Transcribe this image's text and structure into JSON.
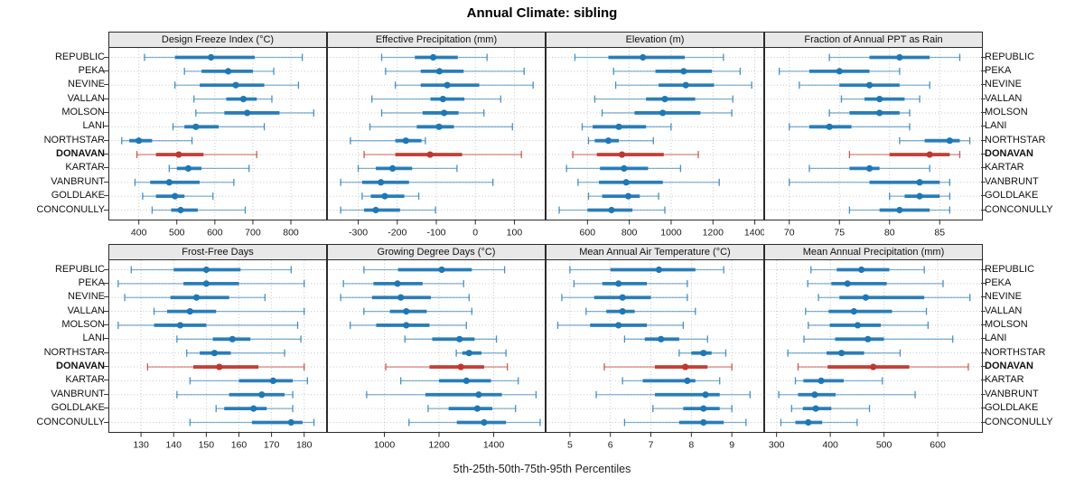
{
  "title": "Annual Climate: sibling",
  "caption": "5th-25th-50th-75th-95th Percentiles",
  "chart_data": {
    "type": "scatter",
    "subtype": "percentile-dotplot-trellis",
    "percentiles": [
      5,
      25,
      50,
      75,
      95
    ],
    "stations": [
      "REPUBLIC",
      "PEKA",
      "NEVINE",
      "VALLAN",
      "MOLSON",
      "LANI",
      "NORTHSTAR",
      "DONAVAN",
      "KARTAR",
      "VANBRUNT",
      "GOLDLAKE",
      "CONCONULLY"
    ],
    "highlight_station": "DONAVAN",
    "layout": {
      "rows": 2,
      "cols": 4,
      "grid": "dotted",
      "legend": "none",
      "station_labels": "left-and-right"
    },
    "colors": {
      "series": "#1f77b4",
      "highlight": "#bf372e",
      "grid": "#c6c6c6",
      "strip_bg": "#e8e8e8",
      "panel_border": "#2b2b2b",
      "tick_text": "#1a1a1a"
    },
    "panels": [
      {
        "title": "Design Freeze Index (°C)",
        "xlim": [
          320,
          895
        ],
        "ticks": [
          400,
          500,
          600,
          700,
          800
        ],
        "values": [
          [
            415,
            495,
            590,
            705,
            830
          ],
          [
            520,
            565,
            635,
            700,
            755
          ],
          [
            495,
            560,
            655,
            730,
            820
          ],
          [
            545,
            630,
            675,
            710,
            750
          ],
          [
            550,
            625,
            685,
            770,
            860
          ],
          [
            490,
            520,
            550,
            610,
            730
          ],
          [
            355,
            375,
            400,
            435,
            540
          ],
          [
            395,
            445,
            505,
            570,
            710
          ],
          [
            480,
            500,
            530,
            565,
            690
          ],
          [
            390,
            430,
            480,
            560,
            650
          ],
          [
            410,
            445,
            495,
            520,
            595
          ],
          [
            435,
            485,
            510,
            555,
            680
          ]
        ]
      },
      {
        "title": "Effective Precipitation (mm)",
        "xlim": [
          -380,
          180
        ],
        "ticks": [
          -300,
          -200,
          -100,
          0,
          100
        ],
        "values": [
          [
            -240,
            -155,
            -108,
            -45,
            30
          ],
          [
            -230,
            -140,
            -92,
            -30,
            125
          ],
          [
            -205,
            -140,
            -72,
            10,
            148
          ],
          [
            -265,
            -115,
            -83,
            -28,
            65
          ],
          [
            -240,
            -135,
            -80,
            -43,
            22
          ],
          [
            -270,
            -150,
            -93,
            -55,
            95
          ],
          [
            -320,
            -205,
            -178,
            -138,
            -128
          ],
          [
            -285,
            -205,
            -116,
            -34,
            118
          ],
          [
            -300,
            -255,
            -212,
            -162,
            -47
          ],
          [
            -345,
            -290,
            -242,
            -170,
            45
          ],
          [
            -290,
            -268,
            -232,
            -182,
            -145
          ],
          [
            -345,
            -285,
            -255,
            -193,
            -102
          ]
        ]
      },
      {
        "title": "Elevation (m)",
        "xlim": [
          400,
          1445
        ],
        "ticks": [
          600,
          800,
          1000,
          1200,
          1400
        ],
        "values": [
          [
            540,
            700,
            865,
            1065,
            1250
          ],
          [
            725,
            925,
            1060,
            1195,
            1330
          ],
          [
            735,
            940,
            1070,
            1205,
            1385
          ],
          [
            635,
            880,
            970,
            1115,
            1295
          ],
          [
            670,
            825,
            960,
            1140,
            1290
          ],
          [
            575,
            625,
            750,
            880,
            1000
          ],
          [
            605,
            635,
            700,
            750,
            915
          ],
          [
            530,
            645,
            765,
            965,
            1130
          ],
          [
            500,
            660,
            775,
            890,
            1045
          ],
          [
            555,
            655,
            785,
            960,
            1230
          ],
          [
            605,
            670,
            795,
            850,
            940
          ],
          [
            465,
            600,
            715,
            815,
            970
          ]
        ]
      },
      {
        "title": "Fraction of Annual PPT as Rain",
        "xlim": [
          67.5,
          89.3
        ],
        "ticks": [
          70,
          75,
          80,
          85
        ],
        "values": [
          [
            74,
            78,
            81,
            84,
            87
          ],
          [
            69,
            72,
            75,
            78,
            81
          ],
          [
            71,
            75,
            78,
            81,
            84
          ],
          [
            75.2,
            77.5,
            79,
            81.5,
            83
          ],
          [
            74,
            76,
            79,
            81,
            82
          ],
          [
            70,
            72,
            74,
            76.2,
            82
          ],
          [
            81,
            83.5,
            86,
            87,
            88
          ],
          [
            76,
            80,
            84,
            86,
            87
          ],
          [
            72,
            76,
            78,
            79,
            84
          ],
          [
            70,
            78,
            83,
            85,
            86
          ],
          [
            80,
            81.5,
            83,
            85,
            86
          ],
          [
            76,
            79,
            81,
            84,
            86
          ]
        ]
      },
      {
        "title": "Frost-Free Days",
        "xlim": [
          120,
          187
        ],
        "ticks": [
          130,
          140,
          150,
          160,
          170,
          180
        ],
        "values": [
          [
            127,
            140,
            150,
            160.5,
            176
          ],
          [
            123,
            143,
            150,
            160,
            180
          ],
          [
            125,
            139,
            147,
            157,
            168
          ],
          [
            134,
            138,
            145,
            153,
            180
          ],
          [
            123,
            134,
            142,
            150,
            178
          ],
          [
            141,
            152,
            158,
            163.5,
            179
          ],
          [
            144,
            148,
            152.5,
            157.5,
            174
          ],
          [
            132,
            146,
            154,
            166,
            180
          ],
          [
            145,
            160,
            170.5,
            176.5,
            181
          ],
          [
            141,
            157,
            167,
            174,
            176.5
          ],
          [
            153,
            155.5,
            164.5,
            168.5,
            176.5
          ],
          [
            145,
            164,
            176,
            179.5,
            183
          ]
        ]
      },
      {
        "title": "Growing Degree Days (°C)",
        "xlim": [
          790,
          1590
        ],
        "ticks": [
          1000,
          1200,
          1400
        ],
        "values": [
          [
            925,
            1050,
            1210,
            1320,
            1440
          ],
          [
            850,
            960,
            1048,
            1140,
            1290
          ],
          [
            840,
            955,
            1060,
            1170,
            1310
          ],
          [
            925,
            1020,
            1080,
            1155,
            1320
          ],
          [
            875,
            970,
            1080,
            1165,
            1300
          ],
          [
            1075,
            1175,
            1275,
            1330,
            1410
          ],
          [
            1263,
            1285,
            1310,
            1355,
            1445
          ],
          [
            1005,
            1165,
            1280,
            1365,
            1450
          ],
          [
            1060,
            1200,
            1300,
            1390,
            1490
          ],
          [
            935,
            1150,
            1345,
            1430,
            1555
          ],
          [
            1160,
            1235,
            1340,
            1395,
            1480
          ],
          [
            1090,
            1265,
            1365,
            1445,
            1570
          ]
        ]
      },
      {
        "title": "Mean Annual Air Temperature (°C)",
        "xlim": [
          4.4,
          9.8
        ],
        "ticks": [
          5,
          6,
          7,
          8,
          9
        ],
        "values": [
          [
            5.0,
            6.0,
            7.2,
            8.1,
            8.8
          ],
          [
            5.1,
            5.8,
            6.2,
            6.9,
            7.9
          ],
          [
            4.8,
            5.6,
            6.3,
            7.0,
            7.9
          ],
          [
            5.4,
            5.9,
            6.3,
            6.6,
            8.1
          ],
          [
            4.7,
            5.5,
            6.2,
            6.9,
            7.8
          ],
          [
            6.35,
            6.85,
            7.25,
            7.7,
            8.4
          ],
          [
            7.7,
            8.0,
            8.3,
            8.5,
            8.85
          ],
          [
            5.85,
            7.1,
            7.85,
            8.4,
            9.0
          ],
          [
            6.3,
            6.8,
            7.9,
            8.1,
            8.7
          ],
          [
            5.65,
            7.1,
            8.35,
            8.7,
            9.45
          ],
          [
            7.05,
            7.8,
            8.3,
            8.7,
            9.0
          ],
          [
            6.35,
            7.7,
            8.3,
            8.8,
            9.35
          ]
        ]
      },
      {
        "title": "Mean Annual Precipitation (mm)",
        "xlim": [
          277,
          684
        ],
        "ticks": [
          300,
          400,
          500,
          600
        ],
        "values": [
          [
            364,
            412,
            458,
            510,
            575
          ],
          [
            358,
            402,
            432,
            505,
            610
          ],
          [
            378,
            417,
            466,
            575,
            660
          ],
          [
            354,
            397,
            444,
            515,
            579
          ],
          [
            359,
            399,
            451,
            494,
            582
          ],
          [
            351,
            409,
            470,
            500,
            628
          ],
          [
            321,
            393,
            421,
            463,
            530
          ],
          [
            340,
            395,
            480,
            547,
            657
          ],
          [
            335,
            350,
            383,
            425,
            497
          ],
          [
            304,
            340,
            371,
            410,
            558
          ],
          [
            328,
            349,
            373,
            402,
            473
          ],
          [
            308,
            335,
            359,
            385,
            450
          ]
        ]
      }
    ]
  }
}
